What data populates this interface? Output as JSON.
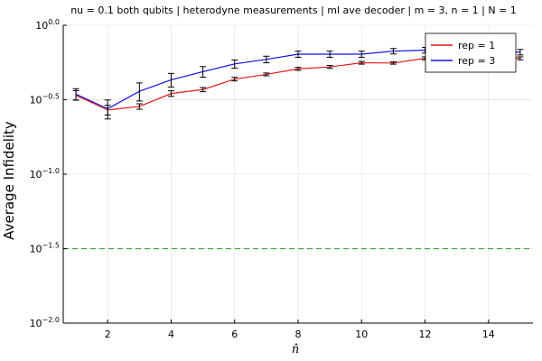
{
  "chart_data": {
    "type": "line",
    "title": "nu = 0.1 both qubits | heterodyne measurements | ml ave decoder | m = 3, n = 1 | N = 1",
    "xlabel": "n̂",
    "ylabel": "Average Infidelity",
    "yscale": "log10",
    "xlim": [
      0.6,
      15.4
    ],
    "ylim": [
      0.01,
      1.0
    ],
    "x_ticks": [
      2,
      4,
      6,
      8,
      10,
      12,
      14
    ],
    "x_tick_labels": [
      "2",
      "4",
      "6",
      "8",
      "10",
      "12",
      "14"
    ],
    "y_ticks": [
      0.01,
      0.0316,
      0.1,
      0.316,
      1.0
    ],
    "y_tick_labels": [
      {
        "base": "10",
        "exp": "−2.0"
      },
      {
        "base": "10",
        "exp": "−1.5"
      },
      {
        "base": "10",
        "exp": "−1.0"
      },
      {
        "base": "10",
        "exp": "−0.5"
      },
      {
        "base": "10",
        "exp": "0.0"
      }
    ],
    "grid": true,
    "legend_position": "top-right",
    "series": [
      {
        "name": "rep = 1",
        "color": "#e41a1c",
        "x": [
          1,
          2,
          3,
          4,
          5,
          6,
          7,
          8,
          9,
          10,
          11,
          12,
          13,
          14,
          15
        ],
        "y": [
          0.339,
          0.27,
          0.285,
          0.348,
          0.37,
          0.435,
          0.468,
          0.51,
          0.525,
          0.56,
          0.558,
          0.6,
          0.58,
          0.62,
          0.6
        ],
        "err": [
          0.025,
          0.02,
          0.012,
          0.015,
          0.012,
          0.012,
          0.01,
          0.012,
          0.012,
          0.012,
          0.01,
          0.014,
          0.012,
          0.012,
          0.014
        ]
      },
      {
        "name": "rep = 3",
        "color": "#1010e0",
        "x": [
          1,
          2,
          3,
          4,
          5,
          6,
          7,
          8,
          9,
          10,
          11,
          12,
          13,
          14,
          15
        ],
        "y": [
          0.345,
          0.275,
          0.36,
          0.43,
          0.488,
          0.55,
          0.59,
          0.64,
          0.64,
          0.64,
          0.67,
          0.68,
          0.655,
          0.66,
          0.66
        ],
        "err": [
          0.03,
          0.04,
          0.05,
          0.045,
          0.04,
          0.035,
          0.03,
          0.03,
          0.03,
          0.03,
          0.028,
          0.03,
          0.028,
          0.028,
          0.028
        ]
      }
    ],
    "reference_line": {
      "y": 0.0316,
      "color": "#3da63d",
      "style": "dashed"
    }
  }
}
